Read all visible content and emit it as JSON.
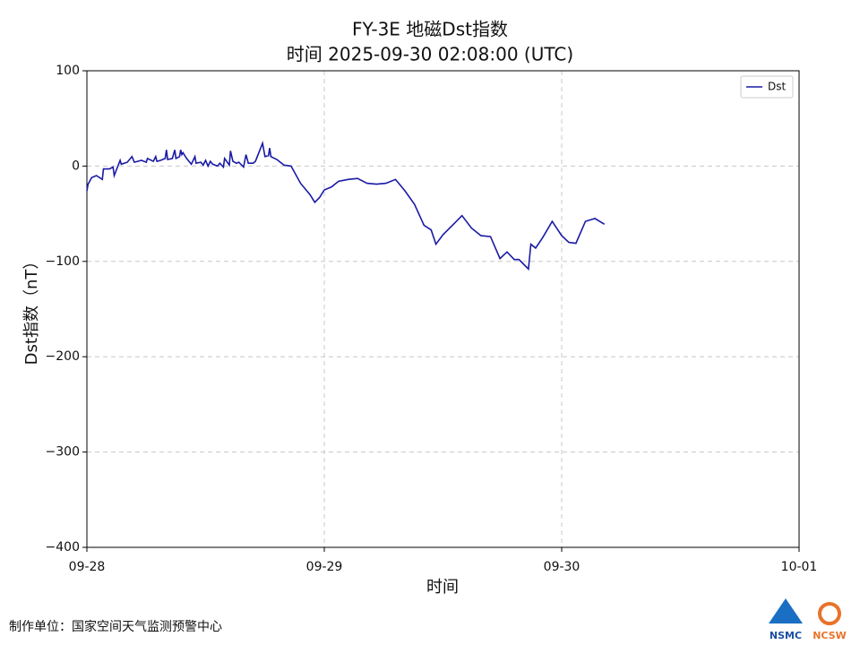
{
  "chart_data": {
    "type": "line",
    "title": "FY-3E 地磁Dst指数",
    "subtitle": "时间 2025-09-30 02:08:00 (UTC)",
    "x_label": "时间",
    "y_label": "Dst指数（nT）",
    "xlim": [
      0,
      3
    ],
    "xticks": [
      {
        "value": 0,
        "label": "09-28"
      },
      {
        "value": 1,
        "label": "09-29"
      },
      {
        "value": 2,
        "label": "09-30"
      },
      {
        "value": 3,
        "label": "10-01"
      }
    ],
    "ylim": [
      -400,
      100
    ],
    "yticks": [
      {
        "value": -400,
        "label": "−400"
      },
      {
        "value": -300,
        "label": "−300"
      },
      {
        "value": -200,
        "label": "−200"
      },
      {
        "value": -100,
        "label": "−100"
      },
      0,
      100
    ],
    "grid": true,
    "legend": "upper right",
    "x": [
      0,
      0.005,
      0.02,
      0.04,
      0.065,
      0.07,
      0.095,
      0.11,
      0.115,
      0.14,
      0.145,
      0.17,
      0.19,
      0.2,
      0.23,
      0.25,
      0.255,
      0.28,
      0.29,
      0.295,
      0.31,
      0.33,
      0.335,
      0.34,
      0.36,
      0.37,
      0.375,
      0.39,
      0.395,
      0.4,
      0.405,
      0.42,
      0.44,
      0.455,
      0.46,
      0.48,
      0.49,
      0.5,
      0.51,
      0.52,
      0.53,
      0.55,
      0.56,
      0.575,
      0.58,
      0.6,
      0.605,
      0.615,
      0.63,
      0.64,
      0.66,
      0.67,
      0.68,
      0.7,
      0.71,
      0.74,
      0.75,
      0.765,
      0.77,
      0.775,
      0.8,
      0.83,
      0.86,
      0.9,
      0.94,
      0.96,
      0.98,
      1.0,
      1.03,
      1.06,
      1.1,
      1.14,
      1.18,
      1.22,
      1.26,
      1.3,
      1.34,
      1.38,
      1.42,
      1.45,
      1.47,
      1.5,
      1.54,
      1.58,
      1.62,
      1.66,
      1.7,
      1.74,
      1.77,
      1.8,
      1.82,
      1.84,
      1.86,
      1.87,
      1.89,
      1.92,
      1.96,
      2.0,
      2.03,
      2.06,
      2.1,
      2.14,
      2.18
    ],
    "series": [
      {
        "name": "Dst",
        "color": "#1a1aa6",
        "values": [
          -26,
          -19,
          -12,
          -10,
          -14,
          -3,
          -3,
          -1,
          -10,
          6,
          2,
          4,
          10,
          4,
          6,
          4,
          8,
          5,
          10,
          5,
          6,
          8,
          17,
          7,
          8,
          17,
          8,
          10,
          17,
          12,
          14,
          8,
          2,
          10,
          3,
          4,
          1,
          6,
          0,
          5,
          2,
          0,
          3,
          -1,
          8,
          1,
          16,
          5,
          3,
          4,
          -1,
          12,
          3,
          3,
          5,
          24,
          10,
          11,
          19,
          10,
          7,
          1,
          0,
          -18,
          -30,
          -38,
          -33,
          -25,
          -22,
          -16,
          -14,
          -13,
          -18,
          -19,
          -18,
          -14,
          -26,
          -40,
          -62,
          -67,
          -82,
          -72,
          -62,
          -52,
          -65,
          -73,
          -74,
          -97,
          -90,
          -98,
          -98,
          -103,
          -108,
          -82,
          -86,
          -75,
          -58,
          -73,
          -80,
          -81,
          -58,
          -55,
          -61
        ]
      }
    ]
  },
  "footer": "制作单位：国家空间天气监测预警中心",
  "logos": [
    "NSMC",
    "NCSW"
  ]
}
